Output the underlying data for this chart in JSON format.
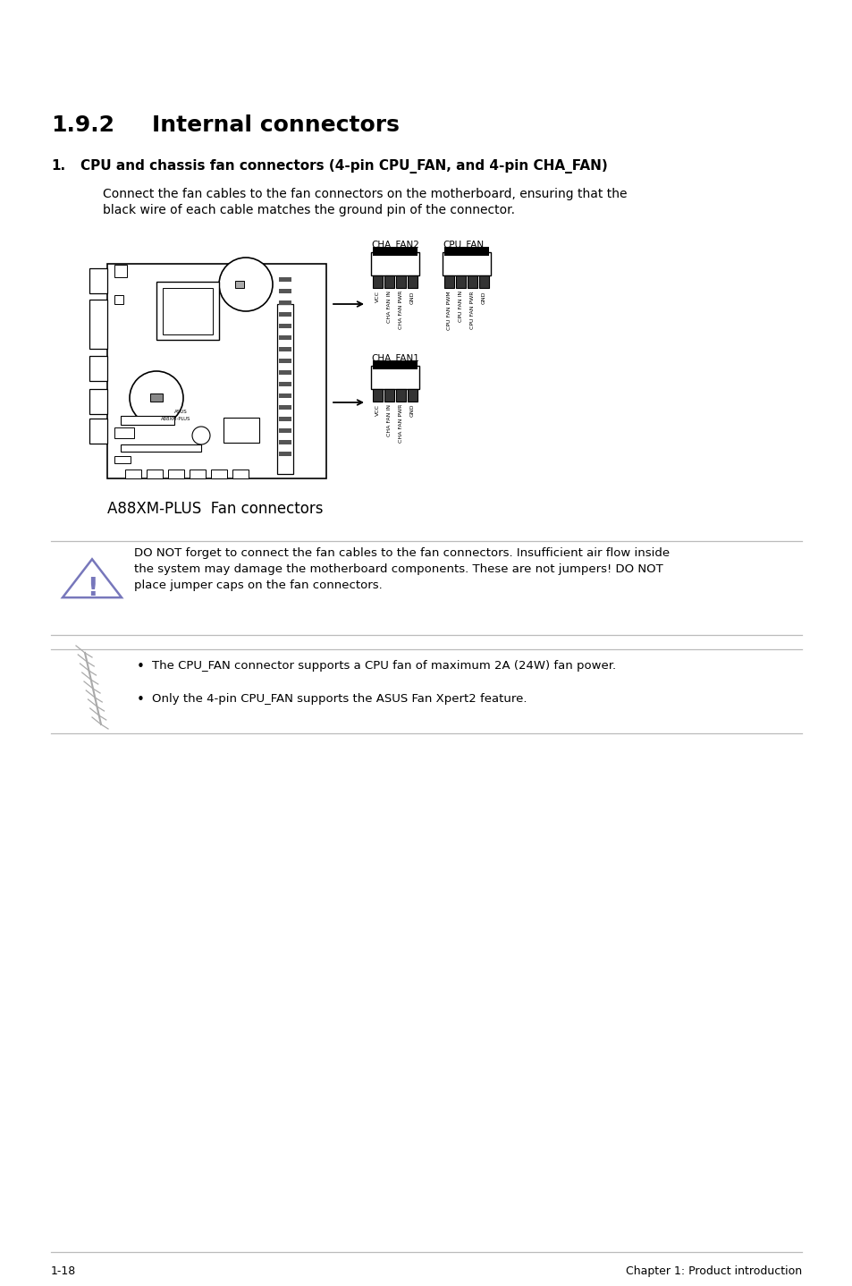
{
  "bg_color": "#ffffff",
  "section_number": "1.9.2",
  "section_title": "Internal connectors",
  "item_number": "1.",
  "item_title": "CPU and chassis fan connectors (4-pin CPU_FAN, and 4-pin CHA_FAN)",
  "body_line1": "Connect the fan cables to the fan connectors on the motherboard, ensuring that the",
  "body_line2": "black wire of each cable matches the ground pin of the connector.",
  "caption_text": "A88XM-PLUS  Fan connectors",
  "warning_text_line1": "DO NOT forget to connect the fan cables to the fan connectors. Insufficient air flow inside",
  "warning_text_line2": "the system may damage the motherboard components. These are not jumpers! DO NOT",
  "warning_text_line3": "place jumper caps on the fan connectors.",
  "note_bullet1": "The CPU_FAN connector supports a CPU fan of maximum 2A (24W) fan power.",
  "note_bullet2": "Only the 4-pin CPU_FAN supports the ASUS Fan Xpert2 feature.",
  "footer_left": "1-18",
  "footer_right": "Chapter 1: Product introduction",
  "text_color": "#000000",
  "line_color": "#bbbbbb",
  "warn_color": "#7777bb"
}
